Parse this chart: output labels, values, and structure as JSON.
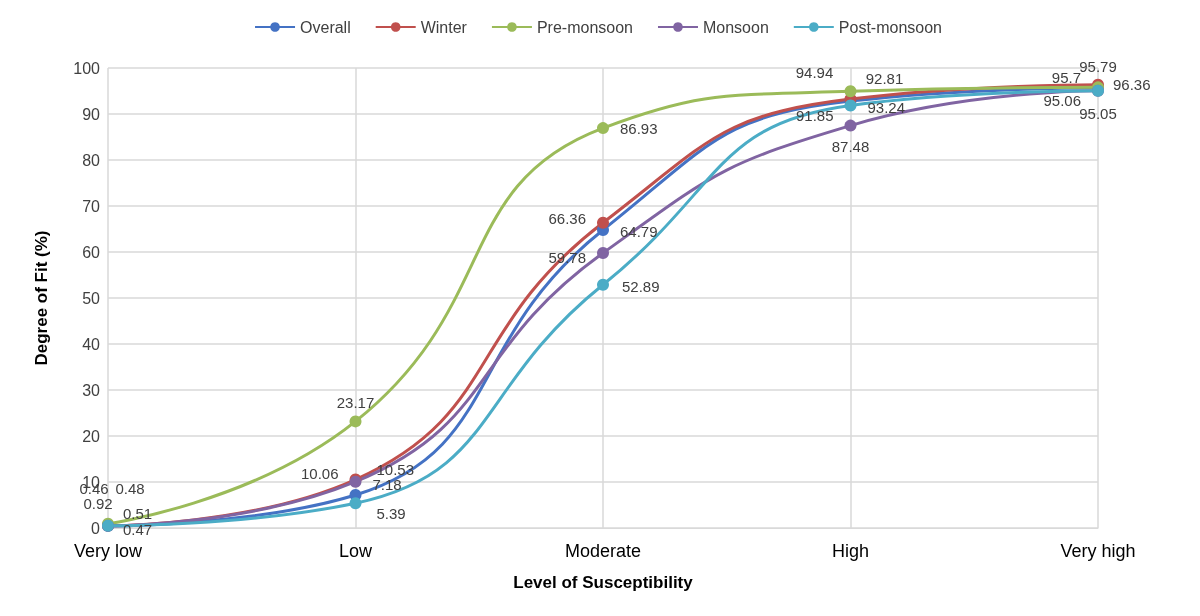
{
  "chart_data": {
    "type": "line",
    "xlabel": "Level of Susceptibility",
    "ylabel": "Degree of Fit (%)",
    "categories": [
      "Very low",
      "Low",
      "Moderate",
      "High",
      "Very high"
    ],
    "ylim": [
      0,
      100
    ],
    "yticks": [
      0,
      10,
      20,
      30,
      40,
      50,
      60,
      70,
      80,
      90,
      100
    ],
    "grid": true,
    "legend": "top",
    "marker": "circle",
    "data_labels": true,
    "series": [
      {
        "name": "Overall",
        "color": "#4472c4",
        "values": [
          0.46,
          7.18,
          64.79,
          92.81,
          95.7
        ]
      },
      {
        "name": "Winter",
        "color": "#c0504d",
        "values": [
          0.51,
          10.53,
          66.36,
          93.24,
          96.36
        ]
      },
      {
        "name": "Pre-monsoon",
        "color": "#9bbb59",
        "values": [
          0.92,
          23.17,
          86.93,
          94.94,
          95.79
        ]
      },
      {
        "name": "Monsoon",
        "color": "#8064a2",
        "values": [
          0.47,
          10.06,
          59.78,
          87.48,
          95.06
        ]
      },
      {
        "name": "Post-monsoon",
        "color": "#4bacc6",
        "values": [
          0.48,
          5.39,
          52.89,
          91.85,
          95.05
        ]
      }
    ]
  }
}
